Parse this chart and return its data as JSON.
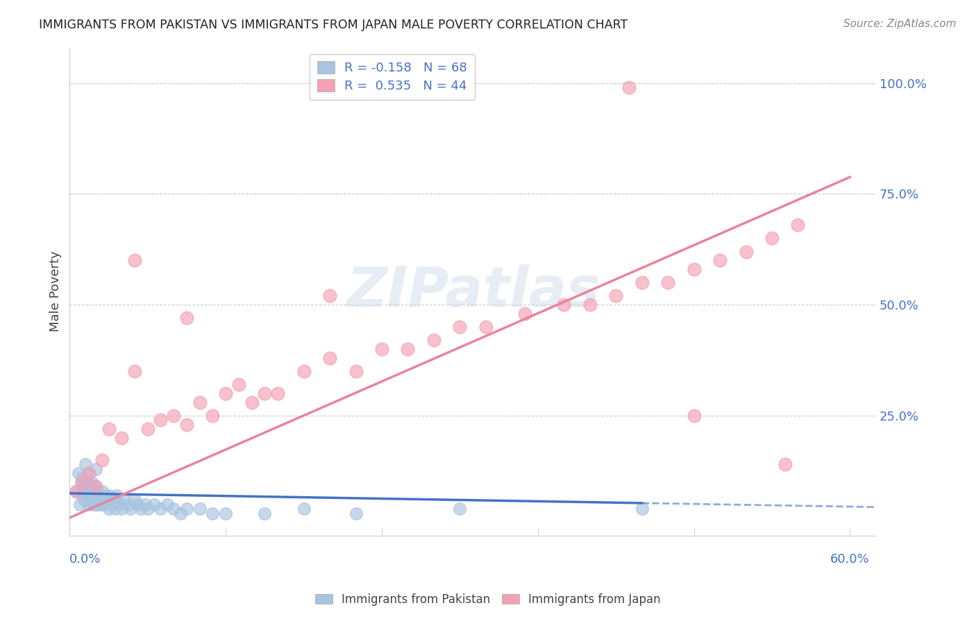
{
  "title": "IMMIGRANTS FROM PAKISTAN VS IMMIGRANTS FROM JAPAN MALE POVERTY CORRELATION CHART",
  "source": "Source: ZipAtlas.com",
  "ylabel": "Male Poverty",
  "ytick_labels": [
    "100.0%",
    "75.0%",
    "50.0%",
    "25.0%"
  ],
  "ytick_values": [
    1.0,
    0.75,
    0.5,
    0.25
  ],
  "xlim": [
    0.0,
    0.62
  ],
  "ylim": [
    -0.02,
    1.08
  ],
  "pakistan_color": "#a8c4e0",
  "japan_color": "#f4a0b5",
  "pakistan_line_color": "#4472c4",
  "japan_line_color": "#e8849a",
  "pakistan_R": -0.158,
  "pakistan_N": 68,
  "japan_R": 0.535,
  "japan_N": 44,
  "pakistan_label": "Immigrants from Pakistan",
  "japan_label": "Immigrants from Japan",
  "watermark": "ZIPatlas",
  "pakistan_scatter_x": [
    0.005,
    0.007,
    0.008,
    0.009,
    0.01,
    0.01,
    0.01,
    0.011,
    0.012,
    0.012,
    0.013,
    0.013,
    0.014,
    0.015,
    0.015,
    0.015,
    0.016,
    0.016,
    0.017,
    0.017,
    0.018,
    0.018,
    0.019,
    0.02,
    0.02,
    0.02,
    0.021,
    0.021,
    0.022,
    0.022,
    0.023,
    0.024,
    0.025,
    0.025,
    0.026,
    0.027,
    0.028,
    0.029,
    0.03,
    0.03,
    0.032,
    0.034,
    0.035,
    0.036,
    0.038,
    0.04,
    0.042,
    0.045,
    0.047,
    0.05,
    0.052,
    0.055,
    0.058,
    0.06,
    0.065,
    0.07,
    0.075,
    0.08,
    0.085,
    0.09,
    0.1,
    0.11,
    0.12,
    0.15,
    0.18,
    0.22,
    0.3,
    0.44
  ],
  "pakistan_scatter_y": [
    0.08,
    0.12,
    0.05,
    0.1,
    0.07,
    0.09,
    0.11,
    0.06,
    0.08,
    0.14,
    0.07,
    0.1,
    0.06,
    0.05,
    0.08,
    0.12,
    0.07,
    0.09,
    0.06,
    0.1,
    0.05,
    0.08,
    0.07,
    0.05,
    0.09,
    0.13,
    0.06,
    0.08,
    0.05,
    0.07,
    0.06,
    0.07,
    0.05,
    0.08,
    0.06,
    0.05,
    0.07,
    0.06,
    0.04,
    0.07,
    0.05,
    0.06,
    0.04,
    0.07,
    0.05,
    0.04,
    0.06,
    0.05,
    0.04,
    0.06,
    0.05,
    0.04,
    0.05,
    0.04,
    0.05,
    0.04,
    0.05,
    0.04,
    0.03,
    0.04,
    0.04,
    0.03,
    0.03,
    0.03,
    0.04,
    0.03,
    0.04,
    0.04
  ],
  "japan_scatter_x": [
    0.005,
    0.01,
    0.015,
    0.02,
    0.025,
    0.03,
    0.04,
    0.05,
    0.06,
    0.07,
    0.08,
    0.09,
    0.1,
    0.11,
    0.12,
    0.13,
    0.14,
    0.15,
    0.16,
    0.18,
    0.2,
    0.22,
    0.24,
    0.26,
    0.28,
    0.3,
    0.32,
    0.35,
    0.38,
    0.4,
    0.42,
    0.44,
    0.46,
    0.48,
    0.5,
    0.52,
    0.54,
    0.56,
    0.05,
    0.09,
    0.2,
    0.48,
    0.55,
    0.43
  ],
  "japan_scatter_y": [
    0.08,
    0.1,
    0.12,
    0.09,
    0.15,
    0.22,
    0.2,
    0.35,
    0.22,
    0.24,
    0.25,
    0.23,
    0.28,
    0.25,
    0.3,
    0.32,
    0.28,
    0.3,
    0.3,
    0.35,
    0.38,
    0.35,
    0.4,
    0.4,
    0.42,
    0.45,
    0.45,
    0.48,
    0.5,
    0.5,
    0.52,
    0.55,
    0.55,
    0.58,
    0.6,
    0.62,
    0.65,
    0.68,
    0.6,
    0.47,
    0.52,
    0.25,
    0.14,
    0.99
  ],
  "grid_color": "#cccccc",
  "grid_linestyle": "--",
  "background_color": "#ffffff"
}
